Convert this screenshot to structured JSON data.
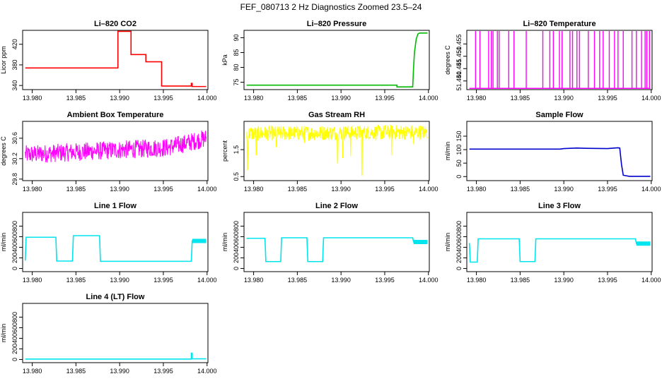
{
  "figure_title": "FEF_080713  2 Hz Diagnostics Zoomed 23.5–24",
  "chart_data": [
    {
      "type": "line",
      "title": "Li–820 CO2",
      "xlabel": "",
      "ylabel": "Licor ppm",
      "xlim": [
        13.9789,
        14.0001
      ],
      "ylim": [
        332,
        447
      ],
      "xticks": [
        13.98,
        13.985,
        13.99,
        13.995,
        14.0
      ],
      "xtick_labels": [
        "13.980",
        "13.985",
        "13.990",
        "13.995",
        "14.000"
      ],
      "yticks": [
        340,
        380,
        420
      ],
      "ytick_labels": [
        "340",
        "380",
        "420"
      ],
      "color": "#ff0000",
      "x": [
        13.9792,
        13.9898,
        13.9898,
        13.9913,
        13.9913,
        13.993,
        13.993,
        13.9948,
        13.9948,
        13.9982,
        13.9982,
        13.9983,
        13.9983,
        13.9999
      ],
      "y": [
        374,
        374,
        445,
        445,
        400,
        400,
        386,
        386,
        339,
        339,
        344,
        344,
        338,
        338
      ]
    },
    {
      "type": "line",
      "title": "Li–820 Pressure",
      "xlabel": "",
      "ylabel": "kPa",
      "xlim": [
        13.9789,
        14.0001
      ],
      "ylim": [
        72.5,
        92.5
      ],
      "xticks": [
        13.98,
        13.985,
        13.99,
        13.995,
        14.0
      ],
      "xtick_labels": [
        "13.980",
        "13.985",
        "13.990",
        "13.995",
        "14.000"
      ],
      "yticks": [
        75,
        80,
        85,
        90
      ],
      "ytick_labels": [
        "75",
        "80",
        "85",
        "90"
      ],
      "color": "#00bb00",
      "x": [
        13.9792,
        13.9964,
        13.9964,
        13.9982,
        13.9983,
        13.9984,
        13.9986,
        13.9988,
        13.999,
        13.9999
      ],
      "y": [
        74,
        74,
        73.4,
        73.4,
        80,
        85,
        89.5,
        91.3,
        91.6,
        91.6
      ]
    },
    {
      "type": "line",
      "title": "Li–820 Temperature",
      "xlabel": "",
      "ylabel": "degrees C",
      "xlim": [
        13.9789,
        14.0001
      ],
      "ylim": [
        51.4365,
        51.4605
      ],
      "xticks": [
        13.98,
        13.985,
        13.99,
        13.995,
        14.0
      ],
      "xtick_labels": [
        "13.980",
        "13.985",
        "13.990",
        "13.995",
        "14.000"
      ],
      "yticks": [
        51.44,
        51.445,
        51.45,
        51.455
      ],
      "ytick_labels": [
        "51.440",
        "51.445",
        "51.450",
        "51.455"
      ],
      "color": "#ff00ff",
      "baseline": 51.437,
      "spike_top": 51.4602,
      "spikes_x": [
        13.9799,
        13.9804,
        13.9814,
        13.9817,
        13.9819,
        13.9824,
        13.9826,
        13.9837,
        13.9843,
        13.9857,
        13.9876,
        13.9884,
        13.9888,
        13.9895,
        13.9898,
        13.9907,
        13.991,
        13.9915,
        13.9918,
        13.9928,
        13.9935,
        13.9941,
        13.9945,
        13.9952,
        13.9958,
        13.9962,
        13.9968,
        13.9978,
        13.9983,
        13.9989,
        13.9993,
        13.9995,
        13.9998
      ]
    },
    {
      "type": "line",
      "title": "Ambient Box Temperature",
      "xlabel": "",
      "ylabel": "degrees C",
      "xlim": [
        13.9789,
        14.0001
      ],
      "ylim": [
        29.77,
        30.93
      ],
      "xticks": [
        13.98,
        13.985,
        13.99,
        13.995,
        14.0
      ],
      "xtick_labels": [
        "13.980",
        "13.985",
        "13.990",
        "13.995",
        "14.000"
      ],
      "yticks": [
        29.8,
        30.2,
        30.6
      ],
      "ytick_labels": [
        "29.8",
        "30.2",
        "30.6"
      ],
      "color": "#ff00ff",
      "x": [
        13.9792,
        13.9955,
        13.9975,
        13.9999
      ],
      "y": [
        30.28,
        30.42,
        30.5,
        30.6
      ],
      "noise_amplitude": 0.18
    },
    {
      "type": "line",
      "title": "Gas Stream RH",
      "xlabel": "",
      "ylabel": "percent",
      "xlim": [
        13.9789,
        14.0001
      ],
      "ylim": [
        0.35,
        2.55
      ],
      "xticks": [
        13.98,
        13.985,
        13.99,
        13.995,
        14.0
      ],
      "xtick_labels": [
        "13.980",
        "13.985",
        "13.990",
        "13.995",
        "14.000"
      ],
      "yticks": [
        0.5,
        1.5
      ],
      "ytick_labels": [
        "0.5",
        "1.5"
      ],
      "color": "#ffff00",
      "x": [
        13.9792,
        13.9999
      ],
      "y": [
        2.1,
        2.15
      ],
      "noise_amplitude": 0.28,
      "dips_x": [
        13.9793,
        13.9803,
        13.9826,
        13.9858,
        13.9896,
        13.9902,
        13.9911,
        13.9924,
        13.9958,
        13.9983
      ],
      "dips_y": [
        0.75,
        1.3,
        1.6,
        1.75,
        1.0,
        1.2,
        1.25,
        0.55,
        1.3,
        1.7
      ]
    },
    {
      "type": "line",
      "title": "Sample Flow",
      "xlabel": "",
      "ylabel": "ml/min",
      "xlim": [
        13.9789,
        14.0001
      ],
      "ylim": [
        -15,
        205
      ],
      "xticks": [
        13.98,
        13.985,
        13.99,
        13.995,
        14.0
      ],
      "xtick_labels": [
        "13.980",
        "13.985",
        "13.990",
        "13.995",
        "14.000"
      ],
      "yticks": [
        0,
        50,
        100,
        150
      ],
      "ytick_labels": [
        "0",
        "50",
        "100",
        "150"
      ],
      "color": "#0000cc",
      "x": [
        13.9792,
        13.9896,
        13.99,
        13.9915,
        13.9925,
        13.995,
        13.9962,
        13.9964,
        13.9966,
        13.9968,
        13.9975,
        13.9999
      ],
      "y": [
        102,
        102,
        104,
        106,
        105,
        104,
        107,
        106,
        45,
        5,
        1,
        1
      ]
    },
    {
      "type": "line",
      "title": "Line 1 Flow",
      "xlabel": "",
      "ylabel": "ml/min",
      "xlim": [
        13.9789,
        14.0001
      ],
      "ylim": [
        -60,
        1060
      ],
      "xticks": [
        13.98,
        13.985,
        13.99,
        13.995,
        14.0
      ],
      "xtick_labels": [
        "13.980",
        "13.985",
        "13.990",
        "13.995",
        "14.000"
      ],
      "yticks": [
        0,
        200,
        400,
        600,
        800
      ],
      "ytick_labels": [
        "0",
        "200",
        "400",
        "600",
        "800"
      ],
      "color": "#00e5ee",
      "x": [
        13.9792,
        13.9793,
        13.9827,
        13.9828,
        13.9846,
        13.9847,
        13.9877,
        13.9878,
        13.9982,
        13.9983,
        13.9999
      ],
      "y": [
        150,
        590,
        590,
        140,
        140,
        620,
        620,
        135,
        135,
        520,
        520
      ]
    },
    {
      "type": "line",
      "title": "Line 2 Flow",
      "xlabel": "",
      "ylabel": "ml/min",
      "xlim": [
        13.9789,
        14.0001
      ],
      "ylim": [
        -60,
        1060
      ],
      "xticks": [
        13.98,
        13.985,
        13.99,
        13.995,
        14.0
      ],
      "xtick_labels": [
        "13.980",
        "13.985",
        "13.990",
        "13.995",
        "14.000"
      ],
      "yticks": [
        0,
        200,
        400,
        600,
        800
      ],
      "ytick_labels": [
        "0",
        "200",
        "400",
        "600",
        "800"
      ],
      "color": "#00e5ee",
      "x": [
        13.9792,
        13.9813,
        13.9814,
        13.9831,
        13.9832,
        13.9861,
        13.9862,
        13.9879,
        13.988,
        13.9982,
        13.9983,
        13.9999
      ],
      "y": [
        570,
        570,
        130,
        130,
        580,
        580,
        130,
        130,
        580,
        580,
        500,
        500
      ]
    },
    {
      "type": "line",
      "title": "Line 3 Flow",
      "xlabel": "",
      "ylabel": "ml/min",
      "xlim": [
        13.9789,
        14.0001
      ],
      "ylim": [
        -60,
        1060
      ],
      "xticks": [
        13.98,
        13.985,
        13.99,
        13.995,
        14.0
      ],
      "xtick_labels": [
        "13.980",
        "13.985",
        "13.990",
        "13.995",
        "14.000"
      ],
      "yticks": [
        0,
        200,
        400,
        600,
        800
      ],
      "ytick_labels": [
        "0",
        "200",
        "400",
        "600",
        "800"
      ],
      "color": "#00e5ee",
      "x": [
        13.9792,
        13.9793,
        13.9801,
        13.9802,
        13.9849,
        13.985,
        13.9867,
        13.9868,
        13.9982,
        13.9983,
        13.9999
      ],
      "y": [
        480,
        120,
        120,
        560,
        560,
        130,
        130,
        560,
        560,
        470,
        470
      ]
    },
    {
      "type": "line",
      "title": "Line 4 (LT) Flow",
      "xlabel": "",
      "ylabel": "ml/min",
      "xlim": [
        13.9789,
        14.0001
      ],
      "ylim": [
        -60,
        1060
      ],
      "xticks": [
        13.98,
        13.985,
        13.99,
        13.995,
        14.0
      ],
      "xtick_labels": [
        "13.980",
        "13.985",
        "13.990",
        "13.995",
        "14.000"
      ],
      "yticks": [
        0,
        200,
        400,
        600,
        800
      ],
      "ytick_labels": [
        "0",
        "200",
        "400",
        "600",
        "800"
      ],
      "color": "#00e5ee",
      "x": [
        13.9792,
        13.9982,
        13.9982,
        13.9983,
        13.9983,
        13.9999
      ],
      "y": [
        8,
        8,
        120,
        120,
        12,
        12
      ]
    }
  ]
}
